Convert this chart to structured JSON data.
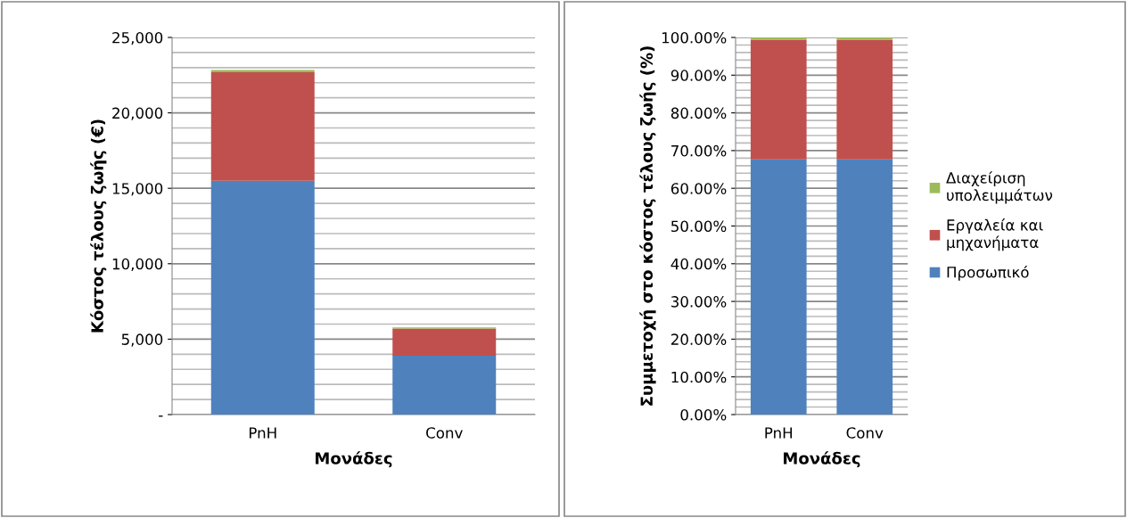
{
  "chart_data": [
    {
      "type": "bar",
      "stacked": true,
      "xlabel": "Μονάδες",
      "ylabel": "Κόστος τέλους ζωής (€)",
      "categories": [
        "PnH",
        "Conv"
      ],
      "series": [
        {
          "color": "#4f81bd",
          "values": [
            15500,
            3900
          ]
        },
        {
          "color": "#c0504d",
          "values": [
            7200,
            1800
          ]
        },
        {
          "color": "#9bbb59",
          "values": [
            150,
            80
          ]
        }
      ],
      "ylim": [
        0,
        25000
      ],
      "yticks": [
        {
          "value": 0,
          "label": "-"
        },
        {
          "value": 5000,
          "label": "5,000"
        },
        {
          "value": 10000,
          "label": "10,000"
        },
        {
          "value": 15000,
          "label": "15,000"
        },
        {
          "value": 20000,
          "label": "20,000"
        },
        {
          "value": 25000,
          "label": "25,000"
        }
      ],
      "grid": "y",
      "legend": false
    },
    {
      "type": "bar",
      "stacked": true,
      "xlabel": "Μονάδες",
      "ylabel": "Συμμετοχή στο κόστος τέλους ζωής (%)",
      "categories": [
        "PnH",
        "Conv"
      ],
      "series": [
        {
          "name": "Προσωπικό",
          "color": "#4f81bd",
          "values": [
            67.7,
            67.7
          ]
        },
        {
          "name": "Εργαλεία και μηχανήματα",
          "color": "#c0504d",
          "values": [
            31.7,
            31.7
          ]
        },
        {
          "name": "Διαχείριση υπολειμμάτων",
          "color": "#9bbb59",
          "values": [
            0.6,
            0.6
          ]
        }
      ],
      "ylim": [
        0,
        100
      ],
      "yticks": [
        {
          "value": 0,
          "label": "0.00%"
        },
        {
          "value": 10,
          "label": "10.00%"
        },
        {
          "value": 20,
          "label": "20.00%"
        },
        {
          "value": 30,
          "label": "30.00%"
        },
        {
          "value": 40,
          "label": "40.00%"
        },
        {
          "value": 50,
          "label": "50.00%"
        },
        {
          "value": 60,
          "label": "60.00%"
        },
        {
          "value": 70,
          "label": "70.00%"
        },
        {
          "value": 80,
          "label": "80.00%"
        },
        {
          "value": 90,
          "label": "90.00%"
        },
        {
          "value": 100,
          "label": "100.00%"
        }
      ],
      "grid": "y",
      "legend": "right"
    }
  ]
}
